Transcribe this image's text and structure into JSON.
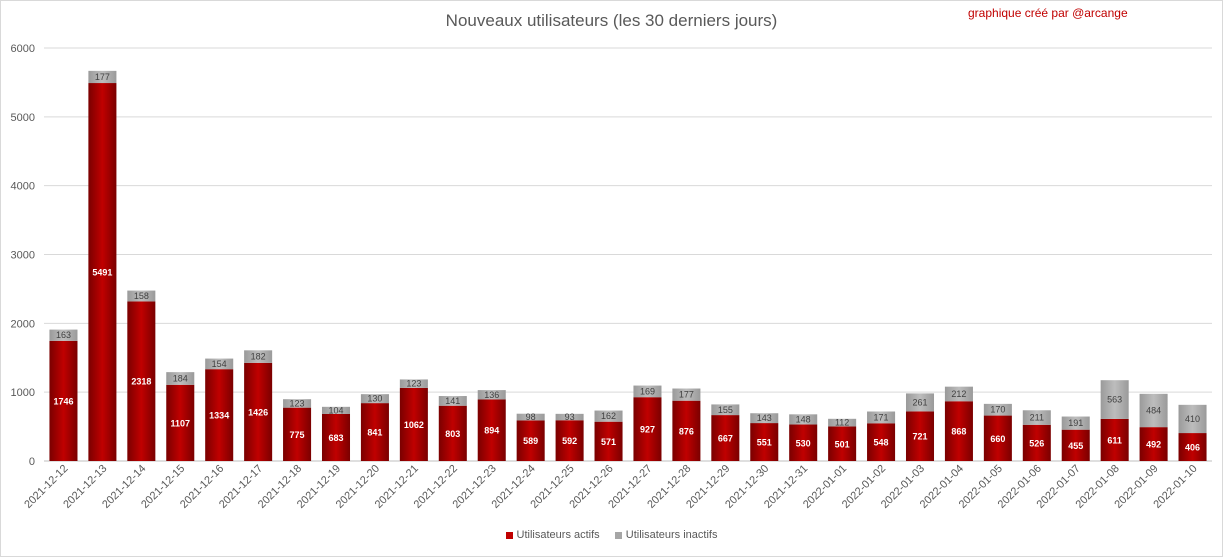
{
  "chart_data": {
    "type": "bar",
    "stacked": true,
    "title": "Nouveaux utilisateurs (les 30 derniers jours)",
    "annotation": "graphique créé par @arcange",
    "categories": [
      "2021-12-12",
      "2021-12-13",
      "2021-12-14",
      "2021-12-15",
      "2021-12-16",
      "2021-12-17",
      "2021-12-18",
      "2021-12-19",
      "2021-12-20",
      "2021-12-21",
      "2021-12-22",
      "2021-12-23",
      "2021-12-24",
      "2021-12-25",
      "2021-12-26",
      "2021-12-27",
      "2021-12-28",
      "2021-12-29",
      "2021-12-30",
      "2021-12-31",
      "2022-01-01",
      "2022-01-02",
      "2022-01-03",
      "2022-01-04",
      "2022-01-05",
      "2022-01-06",
      "2022-01-07",
      "2022-01-08",
      "2022-01-09",
      "2022-01-10"
    ],
    "series": [
      {
        "name": "Utilisateurs actifs",
        "color": "#c00000",
        "values": [
          1746,
          5491,
          2318,
          1107,
          1334,
          1426,
          775,
          683,
          841,
          1062,
          803,
          894,
          589,
          592,
          571,
          927,
          876,
          667,
          551,
          530,
          501,
          548,
          721,
          868,
          660,
          526,
          455,
          611,
          492,
          406
        ]
      },
      {
        "name": "Utilisateurs inactifs",
        "color": "#a6a6a6",
        "values": [
          163,
          177,
          158,
          184,
          154,
          182,
          123,
          104,
          130,
          123,
          141,
          136,
          98,
          93,
          162,
          169,
          177,
          155,
          143,
          148,
          112,
          171,
          261,
          212,
          170,
          211,
          191,
          563,
          484,
          410
        ]
      }
    ],
    "ylim": [
      0,
      6000
    ],
    "yticks": [
      "0",
      "1000",
      "2000",
      "3000",
      "4000",
      "5000",
      "6000"
    ],
    "grid": true,
    "legend": "bottom"
  }
}
